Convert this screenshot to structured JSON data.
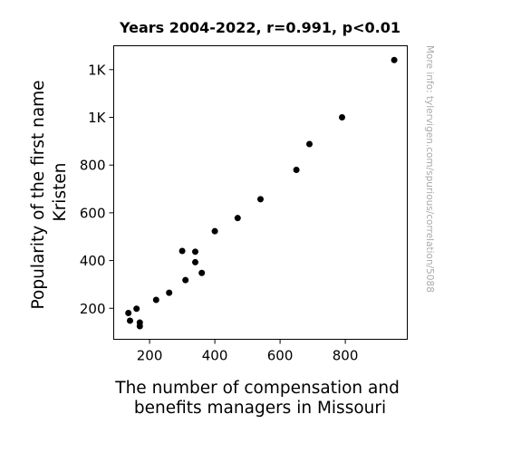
{
  "chart_data": {
    "type": "scatter",
    "title": "Years 2004-2022, r=0.991, p<0.01",
    "xlabel": [
      "The number of compensation and",
      "benefits managers in Missouri"
    ],
    "ylabel": [
      "Popularity of the first name",
      "Kristen"
    ],
    "xlim": [
      90,
      990
    ],
    "ylim": [
      70,
      1300
    ],
    "xticks": [
      {
        "value": 200,
        "label": "200"
      },
      {
        "value": 400,
        "label": "400"
      },
      {
        "value": 600,
        "label": "600"
      },
      {
        "value": 800,
        "label": "800"
      }
    ],
    "yticks": [
      {
        "value": 200,
        "label": "200"
      },
      {
        "value": 400,
        "label": "400"
      },
      {
        "value": 600,
        "label": "600"
      },
      {
        "value": 800,
        "label": "800"
      },
      {
        "value": 1000,
        "label": "1K"
      },
      {
        "value": 1200,
        "label": "1K"
      }
    ],
    "series": [
      {
        "color": "#000000",
        "points": [
          {
            "x": 135,
            "y": 180
          },
          {
            "x": 140,
            "y": 148
          },
          {
            "x": 160,
            "y": 198
          },
          {
            "x": 170,
            "y": 140
          },
          {
            "x": 170,
            "y": 125
          },
          {
            "x": 220,
            "y": 235
          },
          {
            "x": 260,
            "y": 265
          },
          {
            "x": 300,
            "y": 440
          },
          {
            "x": 310,
            "y": 318
          },
          {
            "x": 340,
            "y": 437
          },
          {
            "x": 340,
            "y": 393
          },
          {
            "x": 360,
            "y": 348
          },
          {
            "x": 400,
            "y": 523
          },
          {
            "x": 470,
            "y": 578
          },
          {
            "x": 540,
            "y": 657
          },
          {
            "x": 650,
            "y": 780
          },
          {
            "x": 690,
            "y": 888
          },
          {
            "x": 790,
            "y": 1000
          },
          {
            "x": 950,
            "y": 1240
          }
        ]
      }
    ],
    "grid": false,
    "watermark": "More info: tylervigen.com/spurious/correlation/5088"
  }
}
